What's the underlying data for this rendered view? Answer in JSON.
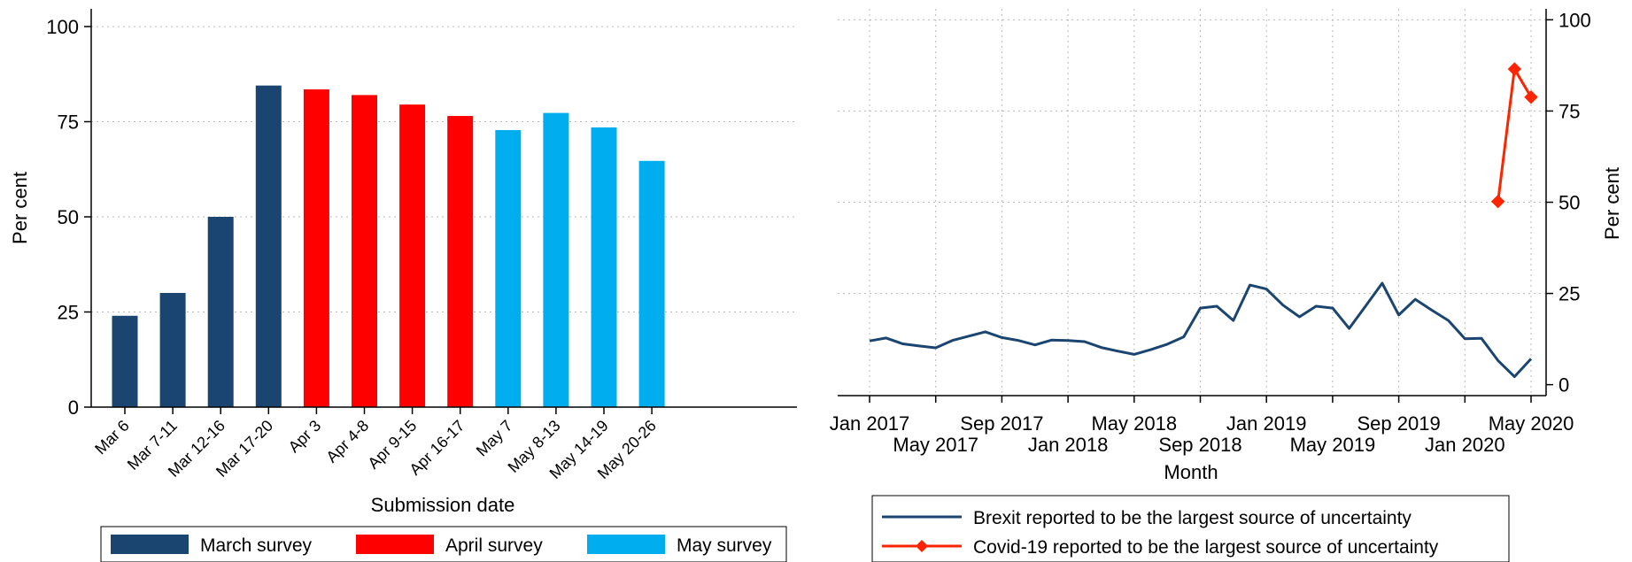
{
  "chart_data": [
    {
      "type": "bar",
      "categories": [
        "Mar 6",
        "Mar 7-11",
        "Mar 12-16",
        "Mar 17-20",
        "Apr 3",
        "Apr 4-8",
        "Apr 9-15",
        "Apr 16-17",
        "May 7",
        "May 8-13",
        "May 14-19",
        "May 20-26"
      ],
      "values": [
        24,
        30,
        50,
        84.5,
        83.5,
        82,
        79.5,
        76.5,
        72.8,
        77.3,
        73.5,
        64.7
      ],
      "groups": [
        "March survey",
        "March survey",
        "March survey",
        "March survey",
        "April survey",
        "April survey",
        "April survey",
        "April survey",
        "May survey",
        "May survey",
        "May survey",
        "May survey"
      ],
      "colors": {
        "March survey": "#1b4571",
        "April survey": "#ff0000",
        "May survey": "#00adef"
      },
      "xlabel": "Submission date",
      "ylabel": "Per cent",
      "ylim": [
        0,
        105
      ],
      "yticks": [
        0,
        25,
        50,
        75,
        100
      ],
      "grid": true,
      "legend": {
        "placement": "bottom",
        "items": [
          "March survey",
          "April survey",
          "May survey"
        ]
      }
    },
    {
      "type": "line",
      "x": [
        "2017-01",
        "2017-02",
        "2017-03",
        "2017-04",
        "2017-05",
        "2017-06",
        "2017-07",
        "2017-08",
        "2017-09",
        "2017-10",
        "2017-11",
        "2017-12",
        "2018-01",
        "2018-02",
        "2018-03",
        "2018-04",
        "2018-05",
        "2018-06",
        "2018-07",
        "2018-08",
        "2018-09",
        "2018-10",
        "2018-11",
        "2018-12",
        "2019-01",
        "2019-02",
        "2019-03",
        "2019-04",
        "2019-05",
        "2019-06",
        "2019-07",
        "2019-08",
        "2019-09",
        "2019-10",
        "2019-11",
        "2019-12",
        "2020-01",
        "2020-02",
        "2020-03",
        "2020-04",
        "2020-05"
      ],
      "xtick_labels_top": [
        "Jan 2017",
        "Sep 2017",
        "May 2018",
        "Jan 2019",
        "Sep 2019",
        "May 2020"
      ],
      "xtick_labels_bottom": [
        "May 2017",
        "Jan 2018",
        "Sep 2018",
        "May 2019",
        "Jan 2020"
      ],
      "series": [
        {
          "name": "Brexit reported to be the largest source of uncertainty",
          "color": "#1b4571",
          "values": [
            12,
            12.8,
            11.2,
            10.6,
            10.1,
            12.1,
            13.3,
            14.5,
            12.9,
            12.1,
            10.9,
            12.2,
            12.1,
            11.8,
            10.2,
            9.2,
            8.3,
            9.6,
            11.1,
            13.1,
            21,
            21.5,
            17.6,
            27.3,
            26.2,
            21.8,
            18.6,
            21.5,
            21,
            15.4,
            21.6,
            27.8,
            19.1,
            23.4,
            20.4,
            17.6,
            12.6,
            12.7,
            6.6,
            2.2,
            7.1
          ]
        },
        {
          "name": "Covid-19 reported to be the largest source of uncertainty",
          "color": "#ff2400",
          "x": [
            "2020-03",
            "2020-04",
            "2020-05"
          ],
          "values": [
            50.2,
            86.5,
            78.8
          ]
        }
      ],
      "xlabel": "Month",
      "ylabel": "Per cent",
      "ylim": [
        -3,
        103
      ],
      "yticks": [
        0,
        25,
        50,
        75,
        100
      ],
      "yaxis_side": "right",
      "grid": true,
      "legend": {
        "placement": "bottom"
      }
    }
  ]
}
